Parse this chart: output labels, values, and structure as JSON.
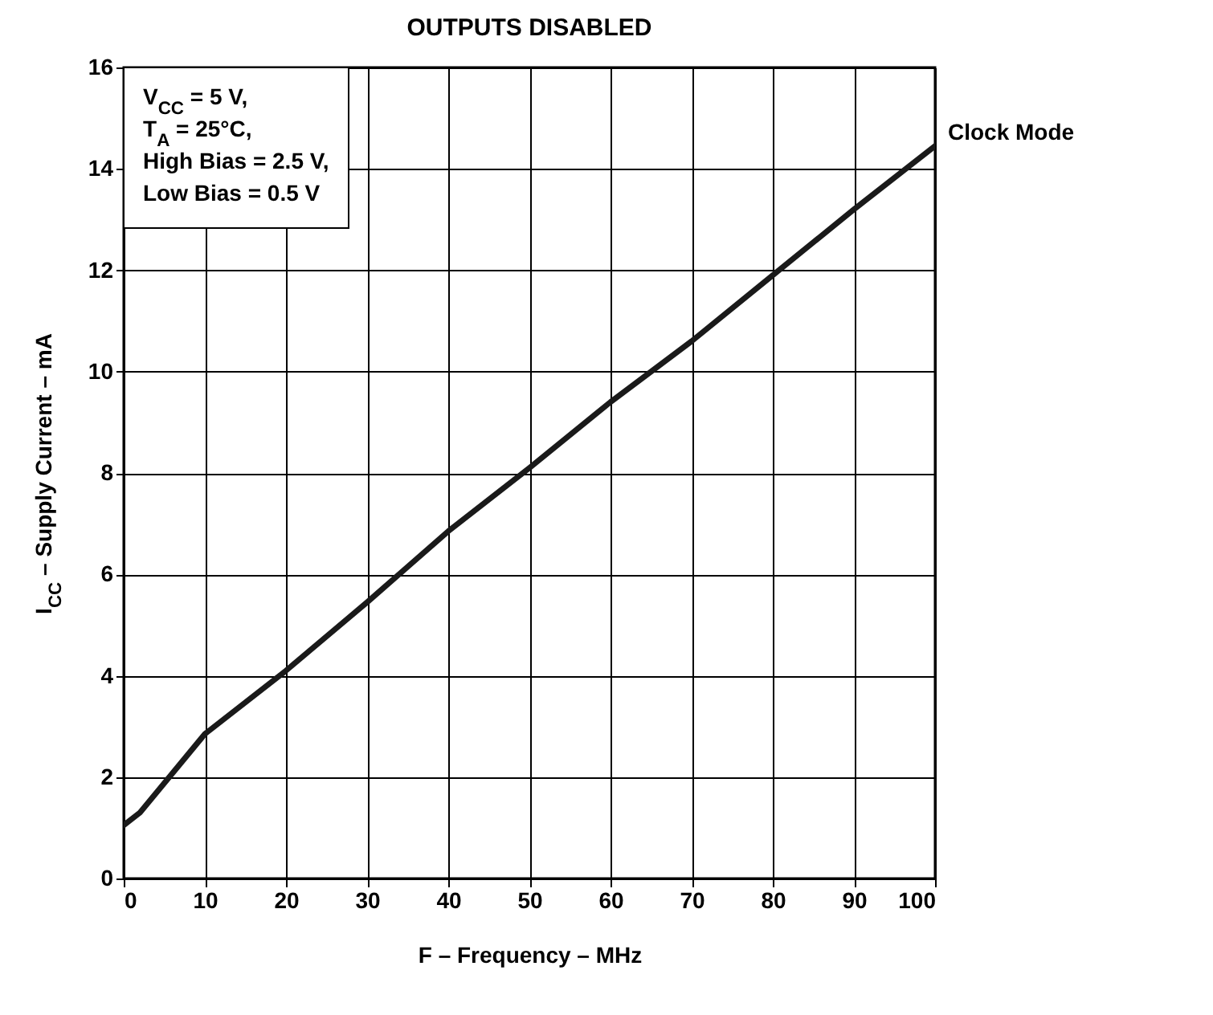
{
  "chart_data": {
    "type": "line",
    "title": "OUTPUTS DISABLED",
    "xlabel": "F – Frequency – MHz",
    "ylabel": "I$_{CC}$ – Supply Current – mA",
    "annotations": [
      "V$_{CC}$ = 5 V,",
      "T$_{A}$ = 25°C,",
      "High Bias = 2.5 V,",
      "Low Bias = 0.5 V"
    ],
    "x": [
      0,
      2,
      10,
      20,
      30,
      40,
      50,
      60,
      70,
      80,
      90,
      100
    ],
    "series": [
      {
        "name": "Clock Mode",
        "color": "#1a1a1a",
        "values": [
          1.05,
          1.3,
          2.85,
          4.1,
          5.45,
          6.85,
          8.1,
          9.4,
          10.6,
          11.9,
          13.2,
          14.45
        ]
      }
    ],
    "xlim": [
      0,
      100
    ],
    "ylim": [
      0,
      16
    ],
    "xticks": [
      0,
      10,
      20,
      30,
      40,
      50,
      60,
      70,
      80,
      90,
      100
    ],
    "yticks": [
      0,
      2,
      4,
      6,
      8,
      10,
      12,
      14,
      16
    ],
    "grid": true
  }
}
